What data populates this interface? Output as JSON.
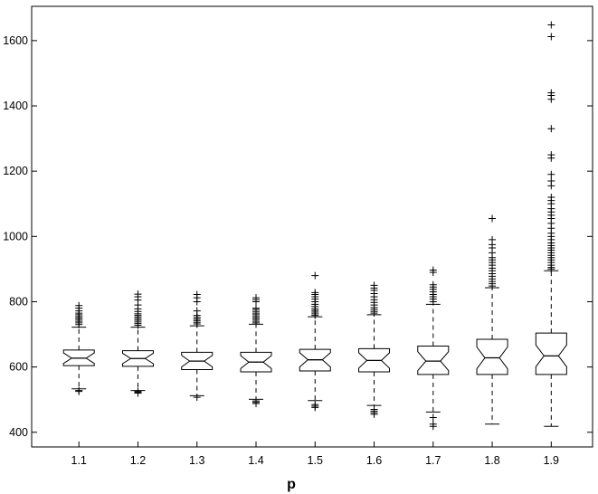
{
  "chart_data": {
    "type": "boxplot",
    "xlabel": "p",
    "ylabel": "",
    "title": "",
    "ylim": [
      355,
      1705
    ],
    "yticks": [
      400,
      600,
      800,
      1000,
      1200,
      1400,
      1600
    ],
    "grid": false,
    "notched": true,
    "colors": {
      "box": "#000000",
      "median": "#000000",
      "outlier": "#000000",
      "background": "#ffffff"
    },
    "categories": [
      "1.1",
      "1.2",
      "1.3",
      "1.4",
      "1.5",
      "1.6",
      "1.7",
      "1.8",
      "1.9"
    ],
    "boxes": [
      {
        "category": "1.1",
        "whisker_low": 533,
        "q1": 604,
        "median": 627,
        "q3": 652,
        "whisker_high": 722,
        "outliers": [
          525,
          528,
          730,
          735,
          740,
          745,
          750,
          755,
          760,
          765,
          772,
          780,
          788
        ]
      },
      {
        "category": "1.2",
        "whisker_low": 528,
        "q1": 602,
        "median": 626,
        "q3": 650,
        "whisker_high": 722,
        "outliers": [
          520,
          523,
          526,
          728,
          733,
          738,
          743,
          748,
          753,
          758,
          763,
          770,
          778,
          790,
          805,
          815,
          823
        ]
      },
      {
        "category": "1.3",
        "whisker_low": 512,
        "q1": 592,
        "median": 618,
        "q3": 645,
        "whisker_high": 726,
        "outliers": [
          507,
          732,
          737,
          742,
          747,
          752,
          758,
          772,
          800,
          812,
          822
        ]
      },
      {
        "category": "1.4",
        "whisker_low": 501,
        "q1": 585,
        "median": 615,
        "q3": 645,
        "whisker_high": 731,
        "outliers": [
          488,
          492,
          496,
          735,
          740,
          745,
          750,
          755,
          760,
          765,
          770,
          776,
          780,
          800,
          806,
          812
        ]
      },
      {
        "category": "1.5",
        "whisker_low": 497,
        "q1": 588,
        "median": 622,
        "q3": 654,
        "whisker_high": 754,
        "outliers": [
          476,
          480,
          485,
          758,
          763,
          768,
          773,
          778,
          785,
          792,
          800,
          808,
          815,
          822,
          828,
          880
        ]
      },
      {
        "category": "1.6",
        "whisker_low": 482,
        "q1": 585,
        "median": 620,
        "q3": 656,
        "whisker_high": 760,
        "outliers": [
          455,
          460,
          465,
          470,
          765,
          770,
          776,
          782,
          790,
          798,
          806,
          815,
          825,
          835,
          842,
          850
        ]
      },
      {
        "category": "1.7",
        "whisker_low": 462,
        "q1": 577,
        "median": 618,
        "q3": 664,
        "whisker_high": 792,
        "outliers": [
          418,
          425,
          445,
          800,
          808,
          815,
          822,
          830,
          838,
          845,
          852,
          890,
          897
        ]
      },
      {
        "category": "1.8",
        "whisker_low": 425,
        "q1": 577,
        "median": 628,
        "q3": 685,
        "whisker_high": 843,
        "outliers": [
          848,
          855,
          862,
          870,
          878,
          886,
          895,
          903,
          912,
          920,
          928,
          935,
          950,
          965,
          975,
          990,
          1055
        ]
      },
      {
        "category": "1.9",
        "whisker_low": 418,
        "q1": 577,
        "median": 634,
        "q3": 704,
        "whisker_high": 895,
        "outliers": [
          900,
          905,
          912,
          920,
          928,
          935,
          942,
          950,
          958,
          965,
          972,
          980,
          990,
          1000,
          1010,
          1025,
          1040,
          1055,
          1065,
          1075,
          1085,
          1100,
          1110,
          1120,
          1155,
          1170,
          1190,
          1240,
          1250,
          1330,
          1420,
          1432,
          1440,
          1612,
          1648
        ]
      }
    ]
  }
}
